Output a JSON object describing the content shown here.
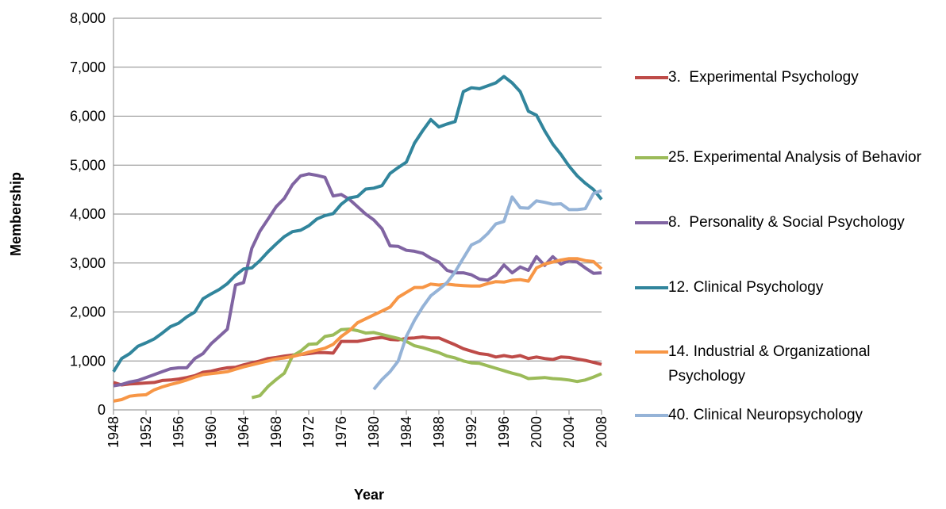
{
  "chart_data": {
    "type": "line",
    "xlabel": "Year",
    "ylabel": "Membership",
    "x": [
      1948,
      1949,
      1950,
      1951,
      1952,
      1953,
      1954,
      1955,
      1956,
      1957,
      1958,
      1959,
      1960,
      1961,
      1962,
      1963,
      1964,
      1965,
      1966,
      1967,
      1968,
      1969,
      1970,
      1971,
      1972,
      1973,
      1974,
      1975,
      1976,
      1977,
      1978,
      1979,
      1980,
      1981,
      1982,
      1983,
      1984,
      1985,
      1986,
      1987,
      1988,
      1989,
      1990,
      1991,
      1992,
      1993,
      1994,
      1995,
      1996,
      1997,
      1998,
      1999,
      2000,
      2001,
      2002,
      2003,
      2004,
      2005,
      2006,
      2007,
      2008
    ],
    "xlim": [
      1948,
      2008
    ],
    "xticks": [
      1948,
      1952,
      1956,
      1960,
      1964,
      1968,
      1972,
      1976,
      1980,
      1984,
      1988,
      1992,
      1996,
      2000,
      2004,
      2008
    ],
    "ylim": [
      0,
      8000
    ],
    "yticks": [
      0,
      {
        "value": 1000,
        "label": "1,000"
      },
      {
        "value": 2000,
        "label": "2,000"
      },
      {
        "value": 3000,
        "label": "3,000"
      },
      {
        "value": 4000,
        "label": "4,000"
      },
      {
        "value": 5000,
        "label": "5,000"
      },
      {
        "value": 6000,
        "label": "6,000"
      },
      {
        "value": 7000,
        "label": "7,000"
      },
      {
        "value": 8000,
        "label": "8,000"
      }
    ],
    "grid": true,
    "legend": "right",
    "series": [
      {
        "name": "3.  Experimental Psychology",
        "color": "#be4b48",
        "values": [
          560,
          510,
          530,
          540,
          550,
          560,
          600,
          610,
          630,
          660,
          700,
          770,
          790,
          830,
          860,
          870,
          920,
          960,
          1000,
          1050,
          1070,
          1100,
          1120,
          1130,
          1150,
          1170,
          1170,
          1160,
          1400,
          1400,
          1400,
          1430,
          1460,
          1480,
          1440,
          1430,
          1460,
          1470,
          1490,
          1470,
          1470,
          1400,
          1330,
          1250,
          1200,
          1150,
          1130,
          1080,
          1110,
          1080,
          1110,
          1050,
          1080,
          1050,
          1030,
          1080,
          1070,
          1040,
          1010,
          970,
          930
        ]
      },
      {
        "name": "25. Experimental Analysis of Behavior",
        "color": "#9bbb59",
        "values": [
          null,
          null,
          null,
          null,
          null,
          null,
          null,
          null,
          null,
          null,
          null,
          null,
          null,
          null,
          null,
          null,
          null,
          250,
          290,
          480,
          620,
          750,
          1100,
          1200,
          1340,
          1350,
          1500,
          1530,
          1640,
          1650,
          1620,
          1570,
          1580,
          1540,
          1500,
          1460,
          1400,
          1310,
          1270,
          1220,
          1170,
          1100,
          1060,
          1000,
          960,
          950,
          900,
          850,
          800,
          750,
          710,
          640,
          650,
          660,
          640,
          630,
          610,
          580,
          610,
          670,
          740
        ]
      },
      {
        "name": "8.  Personality & Social Psychology",
        "color": "#8064a2",
        "values": [
          490,
          520,
          570,
          600,
          660,
          720,
          780,
          840,
          860,
          860,
          1050,
          1150,
          1350,
          1500,
          1650,
          2550,
          2600,
          3300,
          3650,
          3900,
          4150,
          4320,
          4600,
          4780,
          4820,
          4790,
          4750,
          4370,
          4400,
          4300,
          4150,
          4000,
          3880,
          3700,
          3350,
          3340,
          3260,
          3240,
          3200,
          3100,
          3020,
          2850,
          2800,
          2800,
          2760,
          2670,
          2650,
          2750,
          2960,
          2800,
          2920,
          2850,
          3130,
          2950,
          3130,
          2980,
          3050,
          3020,
          2900,
          2790,
          2800
        ]
      },
      {
        "name": "12. Clinical Psychology",
        "color": "#31859c",
        "values": [
          780,
          1050,
          1150,
          1300,
          1370,
          1450,
          1570,
          1700,
          1770,
          1900,
          2000,
          2270,
          2370,
          2460,
          2580,
          2750,
          2880,
          2900,
          3050,
          3230,
          3390,
          3540,
          3640,
          3670,
          3760,
          3900,
          3970,
          4010,
          4200,
          4330,
          4360,
          4510,
          4530,
          4580,
          4830,
          4950,
          5060,
          5450,
          5700,
          5930,
          5780,
          5840,
          5890,
          6500,
          6580,
          6560,
          6620,
          6680,
          6810,
          6680,
          6500,
          6100,
          6020,
          5700,
          5430,
          5220,
          4980,
          4780,
          4630,
          4500,
          4300
        ]
      },
      {
        "name": "14. Industrial & Organizational Psychology",
        "color": "#f79646",
        "values": [
          180,
          210,
          280,
          300,
          310,
          410,
          470,
          520,
          560,
          610,
          670,
          720,
          740,
          760,
          780,
          830,
          880,
          920,
          960,
          1000,
          1040,
          1060,
          1090,
          1130,
          1180,
          1220,
          1260,
          1340,
          1500,
          1620,
          1780,
          1860,
          1940,
          2020,
          2100,
          2300,
          2400,
          2500,
          2500,
          2570,
          2550,
          2570,
          2550,
          2540,
          2530,
          2530,
          2580,
          2620,
          2610,
          2650,
          2660,
          2630,
          2900,
          2980,
          3020,
          3060,
          3090,
          3090,
          3050,
          3030,
          2880
        ]
      },
      {
        "name": "40. Clinical Neuropsychology",
        "color": "#95b3d7",
        "values": [
          null,
          null,
          null,
          null,
          null,
          null,
          null,
          null,
          null,
          null,
          null,
          null,
          null,
          null,
          null,
          null,
          null,
          null,
          null,
          null,
          null,
          null,
          null,
          null,
          null,
          null,
          null,
          null,
          null,
          null,
          null,
          null,
          420,
          620,
          780,
          1000,
          1500,
          1830,
          2100,
          2330,
          2460,
          2600,
          2820,
          3100,
          3370,
          3450,
          3600,
          3800,
          3850,
          4350,
          4130,
          4120,
          4270,
          4240,
          4200,
          4210,
          4090,
          4090,
          4110,
          4420,
          4480
        ]
      }
    ]
  }
}
